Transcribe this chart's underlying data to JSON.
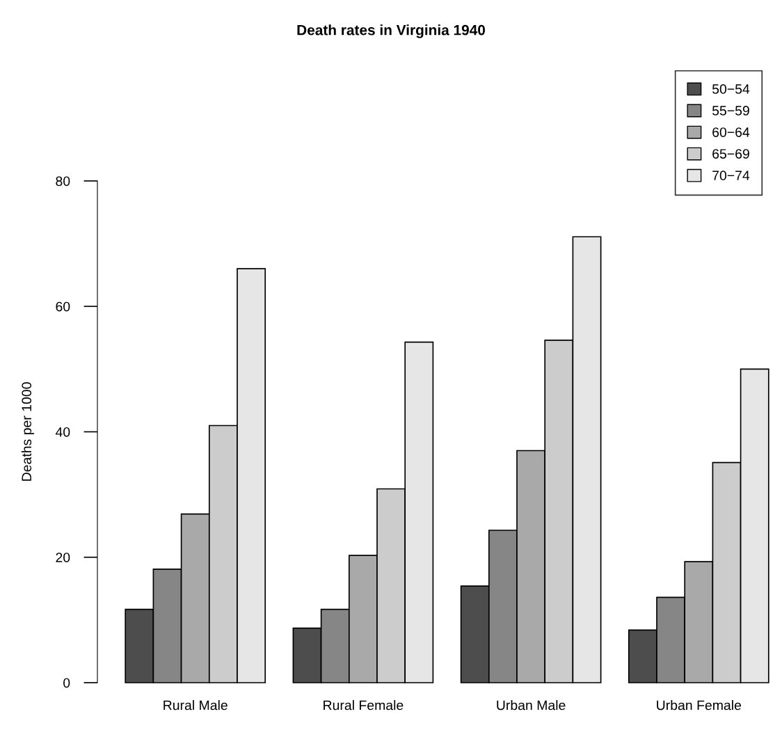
{
  "chart_data": {
    "type": "bar",
    "title": "Death rates in Virginia 1940",
    "ylabel": "Deaths per 1000",
    "categories": [
      "Rural Male",
      "Rural Female",
      "Urban Male",
      "Urban Female"
    ],
    "series": [
      {
        "name": "50−54",
        "color": "#4d4d4d",
        "values": [
          11.7,
          8.7,
          15.4,
          8.4
        ]
      },
      {
        "name": "55−59",
        "color": "#868686",
        "values": [
          18.1,
          11.7,
          24.3,
          13.6
        ]
      },
      {
        "name": "60−64",
        "color": "#a9a9a9",
        "values": [
          26.9,
          20.3,
          37.0,
          19.3
        ]
      },
      {
        "name": "65−69",
        "color": "#cccccc",
        "values": [
          41.0,
          30.9,
          54.6,
          35.1
        ]
      },
      {
        "name": "70−74",
        "color": "#e6e6e6",
        "values": [
          66.0,
          54.3,
          71.1,
          50.0
        ]
      }
    ],
    "ylim": [
      0,
      80
    ],
    "yticks": [
      0,
      20,
      40,
      60,
      80
    ],
    "grid": false,
    "legend": "top right"
  }
}
